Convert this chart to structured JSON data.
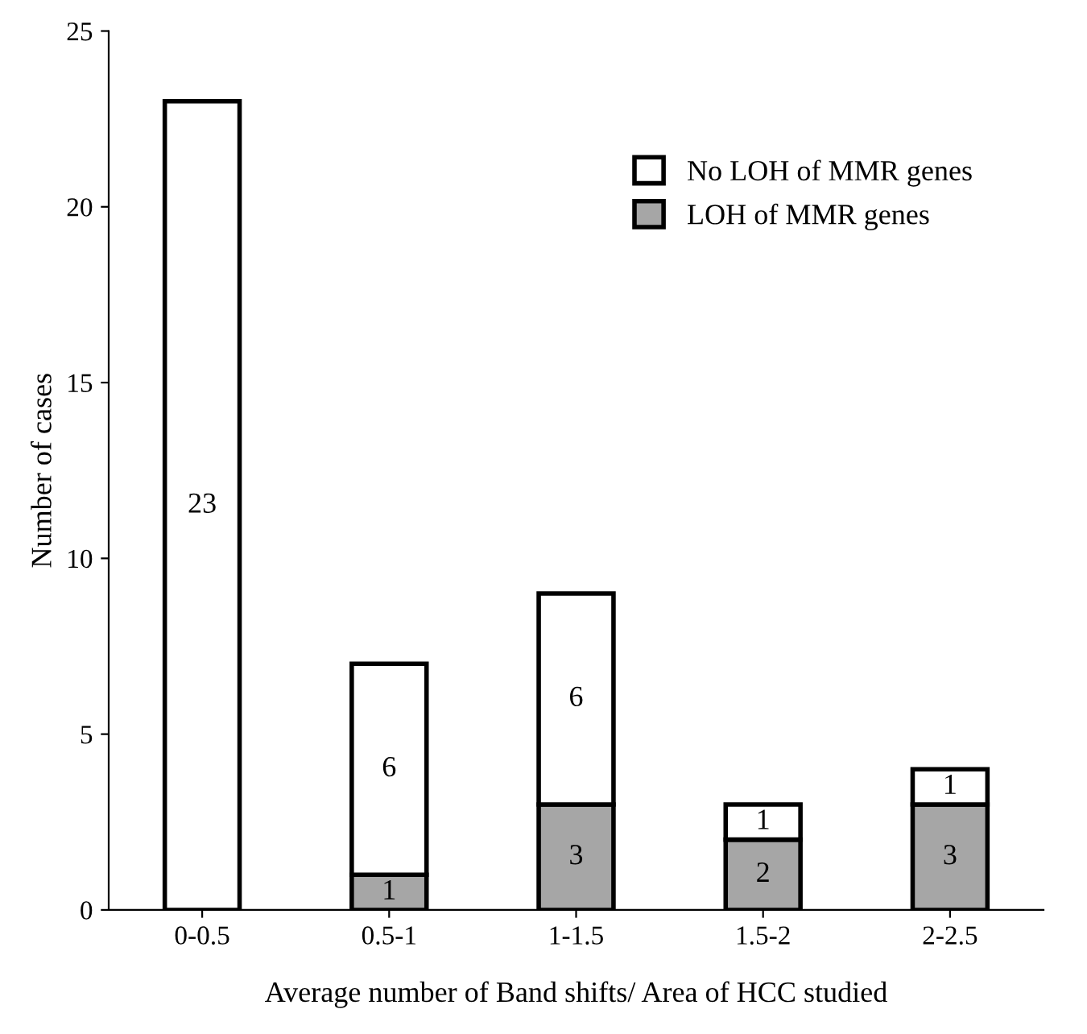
{
  "chart_data": {
    "type": "bar",
    "stacked": true,
    "xlabel": "Average number of Band shifts/ Area of HCC studied",
    "ylabel": "Number of cases",
    "categories": [
      "0-0.5",
      "0.5-1",
      "1-1.5",
      "1.5-2",
      "2-2.5"
    ],
    "series": [
      {
        "name": "LOH of MMR genes",
        "color": "#a6a6a6",
        "values": [
          0,
          1,
          3,
          2,
          3
        ],
        "value_labels": [
          null,
          "1",
          "3",
          "2",
          "3"
        ]
      },
      {
        "name": "No LOH of MMR genes",
        "color": "#ffffff",
        "values": [
          23,
          6,
          6,
          1,
          1
        ],
        "value_labels": [
          "23",
          "6",
          "6",
          "1",
          "1"
        ]
      }
    ],
    "ylim": [
      0,
      25
    ],
    "yticks": [
      0,
      5,
      10,
      15,
      20,
      25
    ],
    "legend": "top right",
    "grid": false
  }
}
